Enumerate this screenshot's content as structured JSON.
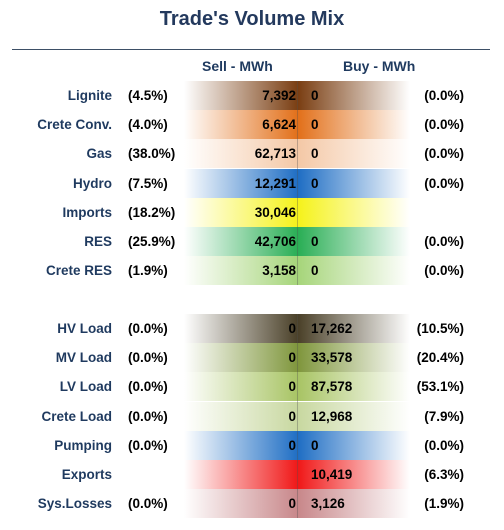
{
  "title": "Trade's Volume Mix",
  "headers": {
    "sell": "Sell - MWh",
    "buy": "Buy - MWh"
  },
  "section1": [
    {
      "name": "Lignite",
      "sell_pct": "(4.5%)",
      "sell": "7,392",
      "buy": "0",
      "buy_pct": "(0.0%)",
      "sell_color": "#7a3e12",
      "buy_color": "#7a3e12"
    },
    {
      "name": "Crete Conv.",
      "sell_pct": "(4.0%)",
      "sell": "6,624",
      "buy": "0",
      "buy_pct": "(0.0%)",
      "sell_color": "#e2701a",
      "buy_color": "#e2701a"
    },
    {
      "name": "Gas",
      "sell_pct": "(38.0%)",
      "sell": "62,713",
      "buy": "0",
      "buy_pct": "(0.0%)",
      "sell_color": "#f4c8a6",
      "buy_color": "#f4c8a6"
    },
    {
      "name": "Hydro",
      "sell_pct": "(7.5%)",
      "sell": "12,291",
      "buy": "0",
      "buy_pct": "(0.0%)",
      "sell_color": "#1f6ec4",
      "buy_color": "#1f6ec4"
    },
    {
      "name": "Imports",
      "sell_pct": "(18.2%)",
      "sell": "30,046",
      "buy": "",
      "buy_pct": "",
      "sell_color": "#f5f21b",
      "buy_color": "#f5f21b"
    },
    {
      "name": "RES",
      "sell_pct": "(25.9%)",
      "sell": "42,706",
      "buy": "0",
      "buy_pct": "(0.0%)",
      "sell_color": "#2aae55",
      "buy_color": "#2aae55"
    },
    {
      "name": "Crete RES",
      "sell_pct": "(1.9%)",
      "sell": "3,158",
      "buy": "0",
      "buy_pct": "(0.0%)",
      "sell_color": "#a6d57a",
      "buy_color": "#a6d57a"
    }
  ],
  "section2": [
    {
      "name": "HV Load",
      "sell_pct": "(0.0%)",
      "sell": "0",
      "buy": "17,262",
      "buy_pct": "(10.5%)",
      "sell_color": "#4a4028",
      "buy_color": "#4a4028"
    },
    {
      "name": "MV Load",
      "sell_pct": "(0.0%)",
      "sell": "0",
      "buy": "33,578",
      "buy_pct": "(20.4%)",
      "sell_color": "#7f963c",
      "buy_color": "#7f963c"
    },
    {
      "name": "LV Load",
      "sell_pct": "(0.0%)",
      "sell": "0",
      "buy": "87,578",
      "buy_pct": "(53.1%)",
      "sell_color": "#a8c464",
      "buy_color": "#a8c464"
    },
    {
      "name": "Crete Load",
      "sell_pct": "(0.0%)",
      "sell": "0",
      "buy": "12,968",
      "buy_pct": "(7.9%)",
      "sell_color": "#c8d8a0",
      "buy_color": "#c8d8a0"
    },
    {
      "name": "Pumping",
      "sell_pct": "(0.0%)",
      "sell": "0",
      "buy": "0",
      "buy_pct": "(0.0%)",
      "sell_color": "#1f6ec4",
      "buy_color": "#1f6ec4"
    },
    {
      "name": "Exports",
      "sell_pct": "",
      "sell": "",
      "buy": "10,419",
      "buy_pct": "(6.3%)",
      "sell_color": "#f01818",
      "buy_color": "#f01818"
    },
    {
      "name": "Sys.Losses",
      "sell_pct": "(0.0%)",
      "sell": "0",
      "buy": "3,126",
      "buy_pct": "(1.9%)",
      "sell_color": "#c8878a",
      "buy_color": "#c8878a"
    }
  ]
}
